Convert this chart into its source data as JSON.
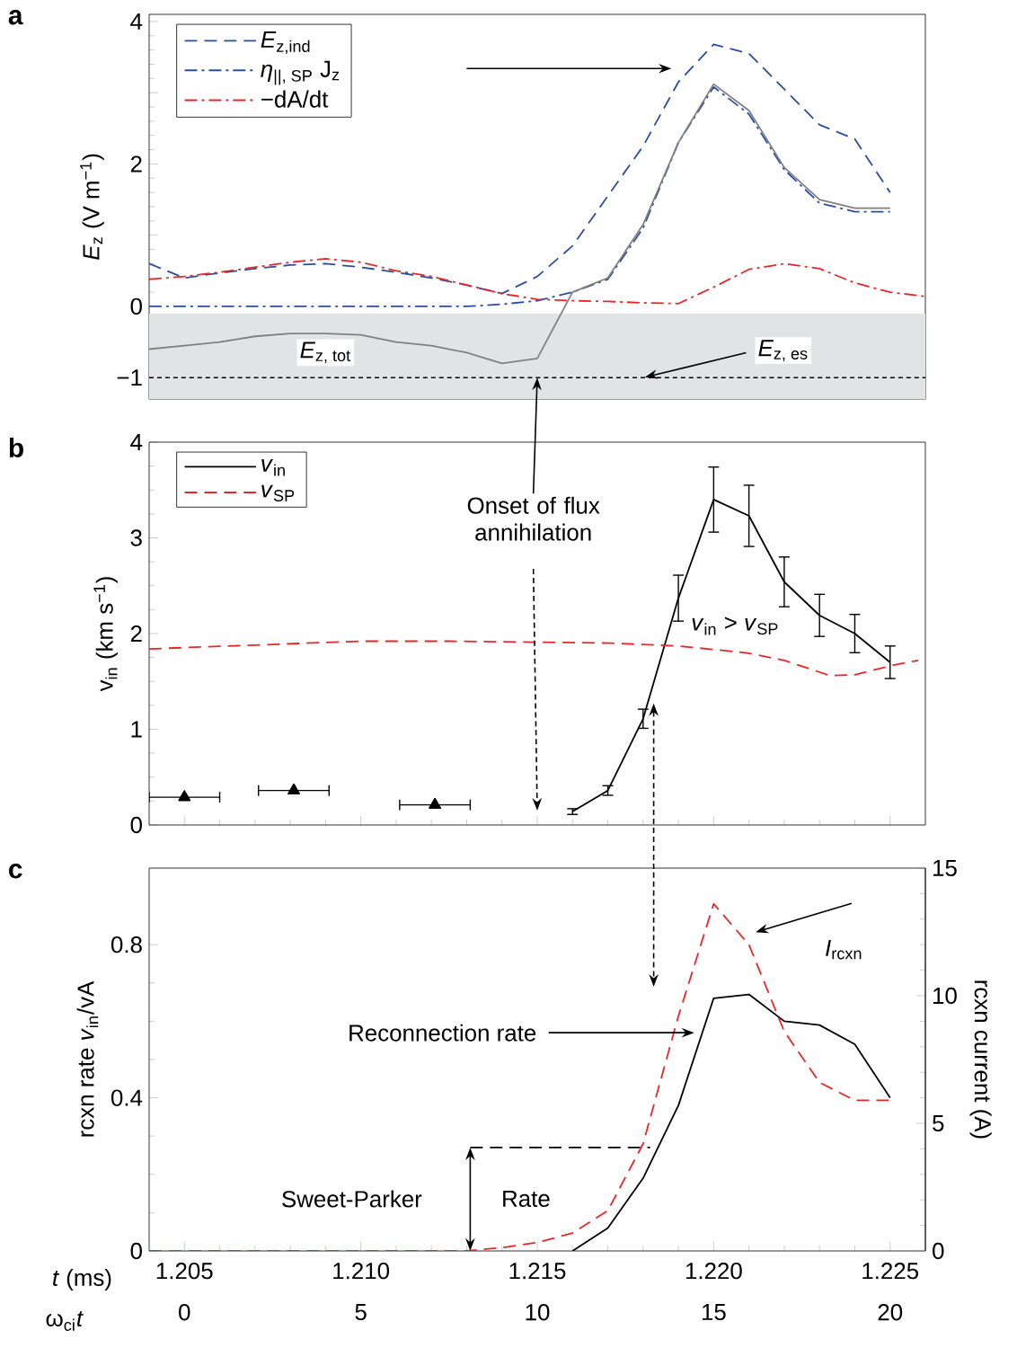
{
  "chart_data": [
    {
      "type": "line",
      "title": "a",
      "ylabel": "*E*$_{z}$ (V m$^{−1}$)",
      "xlim": [
        1.204,
        1.226
      ],
      "xticks": [
        1.205,
        1.21,
        1.215,
        1.22,
        1.225
      ],
      "ylim": [
        -1.3,
        4.1
      ],
      "yticks": [
        {
          "value": -1,
          "label": "−1"
        },
        0,
        {
          "value": 1,
          "label": null
        },
        2,
        {
          "value": 3,
          "label": null
        },
        4
      ],
      "tick_labels": "y",
      "legend": "top left",
      "series": [
        {
          "name": "*E*$_{z,ind}$",
          "color": "#2b4ea2",
          "line_style": "dashed",
          "x": [
            1.204,
            1.205,
            1.206,
            1.207,
            1.208,
            1.209,
            1.21,
            1.211,
            1.212,
            1.213,
            1.214,
            1.215,
            1.216,
            1.217,
            1.218,
            1.219,
            1.22,
            1.221,
            1.222,
            1.223,
            1.224,
            1.225
          ],
          "values": [
            0.6,
            0.4,
            0.47,
            0.53,
            0.58,
            0.6,
            0.55,
            0.48,
            0.4,
            0.3,
            0.18,
            0.42,
            0.85,
            1.55,
            2.25,
            3.15,
            3.68,
            3.55,
            3.05,
            2.55,
            2.35,
            1.6
          ]
        },
        {
          "name": "*η*$_{||, SP}$ J$_{z}$",
          "color": "#2b4ea2",
          "line_style": "dashdot",
          "x": [
            1.204,
            1.205,
            1.206,
            1.207,
            1.208,
            1.209,
            1.21,
            1.211,
            1.212,
            1.213,
            1.214,
            1.215,
            1.216,
            1.217,
            1.218,
            1.219,
            1.22,
            1.221,
            1.222,
            1.223,
            1.224,
            1.225
          ],
          "values": [
            0,
            0,
            0,
            0,
            0,
            0,
            0,
            0,
            0,
            0,
            0.03,
            0.08,
            0.2,
            0.38,
            1.1,
            2.3,
            3.08,
            2.7,
            1.92,
            1.45,
            1.33,
            1.33
          ]
        },
        {
          "name": "−dA/dt",
          "color": "#e8262a",
          "line_style": "dashdot",
          "x": [
            1.204,
            1.205,
            1.206,
            1.207,
            1.208,
            1.209,
            1.21,
            1.211,
            1.212,
            1.213,
            1.214,
            1.215,
            1.216,
            1.217,
            1.218,
            1.219,
            1.22,
            1.221,
            1.222,
            1.223,
            1.224,
            1.225,
            1.226
          ],
          "values": [
            0.38,
            0.42,
            0.48,
            0.55,
            0.62,
            0.67,
            0.62,
            0.5,
            0.42,
            0.3,
            0.18,
            0.1,
            0.08,
            0.07,
            0.05,
            0.04,
            0.27,
            0.52,
            0.6,
            0.53,
            0.33,
            0.2,
            0.14
          ]
        },
        {
          "color": "#808080",
          "line_style": "solid",
          "x": [
            1.204,
            1.205,
            1.206,
            1.207,
            1.208,
            1.209,
            1.21,
            1.211,
            1.212,
            1.213,
            1.214,
            1.215,
            1.216,
            1.217,
            1.218,
            1.219,
            1.22,
            1.221,
            1.222,
            1.223,
            1.224,
            1.225
          ],
          "values": [
            -0.6,
            -0.55,
            -0.5,
            -0.42,
            -0.38,
            -0.38,
            -0.4,
            -0.5,
            -0.55,
            -0.65,
            -0.8,
            -0.73,
            0.2,
            0.4,
            1.15,
            2.3,
            3.12,
            2.75,
            1.95,
            1.5,
            1.38,
            1.38
          ]
        }
      ],
      "bands": [
        {
          "axis": "y",
          "from": -1.3,
          "to": -0.1,
          "color": "#e2e3e5"
        }
      ],
      "ref_lines": [
        {
          "axis": "y",
          "value": -1,
          "color": "#000000",
          "line_style": "dashed"
        }
      ],
      "annotations": [
        {
          "text": "\\textit{E}_{\\textrm{z, tot}}",
          "x": 1.209,
          "y": -0.38
        },
        {
          "text": "\\textit{E}_{\\textrm{z, es}}",
          "x": 1.218,
          "y": -1
        }
      ]
    },
    {
      "type": "line",
      "title": "b",
      "ylabel": "v$_{in}$ (km s$^{−1}$)",
      "xlim": [
        1.204,
        1.226
      ],
      "xticks": [
        1.205,
        1.21,
        1.215,
        1.22,
        1.225
      ],
      "ylim": [
        0,
        4
      ],
      "yticks": [
        0,
        1,
        2,
        3,
        4
      ],
      "tick_labels": "y",
      "legend": "top left",
      "series": [
        {
          "name": "*v*$_{in}$",
          "color": "#000000",
          "line_style": "solid",
          "x": [
            1.216,
            1.217,
            1.218,
            1.219,
            1.22,
            1.221,
            1.222,
            1.223,
            1.224,
            1.225
          ],
          "values": [
            0.14,
            0.36,
            1.11,
            2.37,
            3.4,
            3.23,
            2.54,
            2.19,
            2.0,
            1.7
          ],
          "errors": [
            0.03,
            0.05,
            0.1,
            0.24,
            0.34,
            0.32,
            0.26,
            0.22,
            0.2,
            0.17
          ]
        },
        {
          "name": "*v*$_{SP}$",
          "color": "#e8262a",
          "line_style": "dashed",
          "x": [
            1.204,
            1.207,
            1.21,
            1.2125,
            1.215,
            1.2171,
            1.219,
            1.2209,
            1.222,
            1.2233,
            1.224,
            1.2251,
            1.2258
          ],
          "values": [
            1.84,
            1.88,
            1.92,
            1.92,
            1.91,
            1.9,
            1.87,
            1.8,
            1.72,
            1.56,
            1.57,
            1.67,
            1.72
          ]
        },
        {
          "type": "scatter",
          "color": "#000000",
          "marker": "triangle",
          "x": [
            1.205,
            1.2081,
            1.2121
          ],
          "values": [
            0.29,
            0.36,
            0.21
          ],
          "xerrors": [
            0.001,
            0.001,
            0.001
          ]
        }
      ],
      "annotations": [
        "Onset of flux annihilation",
        "*v*$_{in}$ > *v*$_{SP}$"
      ]
    },
    {
      "type": "line",
      "title": "c",
      "xlabel": "*t* (ms)",
      "ylabel": "rcxn rate *v*$_{in}$/vA",
      "y2label": "rcxn current (A)",
      "x2label": "ω$_{ci}$*t*",
      "xlim": [
        1.204,
        1.226
      ],
      "xticks": [
        1.205,
        {
          "value": 1.21,
          "label": "1.210"
        },
        1.215,
        {
          "value": 1.22,
          "label": "1.220"
        },
        1.225
      ],
      "ylim": [
        0,
        1.0
      ],
      "yticks": [
        0,
        0.4,
        0.8
      ],
      "y2lim": [
        0,
        15
      ],
      "y2ticks": [
        0,
        5,
        10,
        15
      ],
      "x2lim": [
        -1,
        21
      ],
      "x2ticks": [
        0,
        5,
        10,
        15,
        20
      ],
      "series": [
        {
          "color": "#000000",
          "line_style": "solid",
          "x": [
            1.216,
            1.217,
            1.218,
            1.219,
            1.22,
            1.221,
            1.222,
            1.223,
            1.224,
            1.225
          ],
          "values": [
            0,
            0.06,
            0.19,
            0.38,
            0.66,
            0.67,
            0.6,
            0.59,
            0.54,
            0.4
          ]
        },
        {
          "color": "#e8262a",
          "line_style": "dashed",
          "axis": "y2",
          "x": [
            1.204,
            1.205,
            1.206,
            1.207,
            1.208,
            1.209,
            1.21,
            1.211,
            1.212,
            1.213,
            1.214,
            1.215,
            1.216,
            1.217,
            1.218,
            1.219,
            1.22,
            1.221,
            1.222,
            1.223,
            1.224,
            1.225
          ],
          "values": [
            0,
            0,
            0,
            0,
            0,
            0,
            0,
            0,
            0,
            0,
            0.13,
            0.33,
            0.7,
            1.58,
            4.2,
            9.2,
            13.6,
            12.0,
            8.6,
            6.6,
            5.9,
            5.9
          ]
        },
        {
          "color": "#000000",
          "line_style": "dashed",
          "x": [
            1.2131,
            1.2182
          ],
          "values": [
            0.27,
            0.27
          ]
        }
      ],
      "annotations": [
        {
          "text": "Reconnection rate",
          "x": 1.2195,
          "y": 0.57
        },
        "*I*$_{rcxn}$",
        {
          "text": "Sweet-Parker",
          "x": 1.2131,
          "y": 0.27
        },
        {
          "text": "Rate",
          "x": 1.2131,
          "y": 0.27
        }
      ]
    }
  ]
}
